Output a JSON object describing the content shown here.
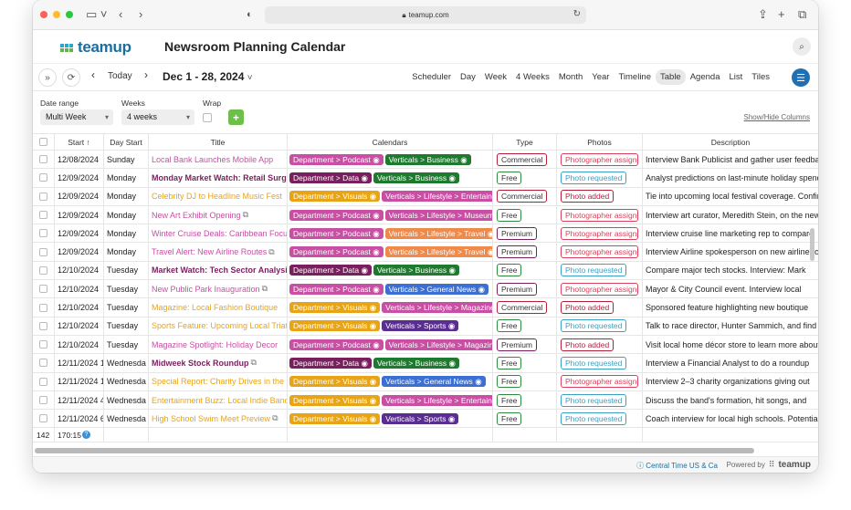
{
  "browser": {
    "url": "teamup.com"
  },
  "app": {
    "logo_text": "teamup",
    "calendar_title": "Newsroom Planning Calendar"
  },
  "nav": {
    "today_label": "Today",
    "date_range": "Dec 1 - 28, 2024",
    "views": [
      "Scheduler",
      "Day",
      "Week",
      "4 Weeks",
      "Month",
      "Year",
      "Timeline",
      "Table",
      "Agenda",
      "List",
      "Tiles"
    ],
    "active_view": "Table"
  },
  "filters": {
    "date_range_label": "Date range",
    "date_range_value": "Multi Week",
    "weeks_label": "Weeks",
    "weeks_value": "4 weeks",
    "wrap_label": "Wrap",
    "show_hide_label": "Show/Hide Columns"
  },
  "table": {
    "headers": {
      "start": "Start ↑",
      "day_start": "Day Start",
      "title": "Title",
      "calendars": "Calendars",
      "type": "Type",
      "photos": "Photos",
      "description": "Description"
    },
    "rows": [
      {
        "start": "12/08/2024",
        "day": "Sunday",
        "title": "Local Bank Launches Mobile App",
        "title_color": "#c84fa3",
        "bold": false,
        "cals": [
          {
            "label": "Department > Podcast",
            "color": "#c84fa3"
          },
          {
            "label": "Verticals > Business",
            "color": "#1e7a2e"
          }
        ],
        "type": "Commercial",
        "type_color": "#b51f3a",
        "photo": "Photographer assigned",
        "photo_color": "#d9415a",
        "desc": "Interview Bank Publicist and gather user feedback"
      },
      {
        "start": "12/09/2024",
        "day": "Monday",
        "title": "Monday Market Watch: Retail Surge",
        "title_color": "#7a1f5e",
        "bold": true,
        "cals": [
          {
            "label": "Department > Data",
            "color": "#7a1f5e"
          },
          {
            "label": "Verticals > Business",
            "color": "#1e7a2e"
          }
        ],
        "type": "Free",
        "type_color": "#2e8b3e",
        "photo": "Photo requested",
        "photo_color": "#3ba0c4",
        "desc": "Analyst predictions on last-minute holiday spending"
      },
      {
        "start": "12/09/2024",
        "day": "Monday",
        "title": "Celebrity DJ to Headline Music Fest",
        "title_color": "#e8a417",
        "bold": false,
        "cals": [
          {
            "label": "Department > Visuals",
            "color": "#e8a417"
          },
          {
            "label": "Verticals > Lifestyle > Entertainment",
            "color": "#c84fa3"
          }
        ],
        "type": "Commercial",
        "type_color": "#b51f3a",
        "photo": "Photo added",
        "photo_color": "#b51f3a",
        "desc": "Tie into upcoming local festival coverage. Confirm"
      },
      {
        "start": "12/09/2024",
        "day": "Monday",
        "title": "New Art Exhibit Opening",
        "title_color": "#c84fa3",
        "bold": false,
        "repeat": true,
        "cals": [
          {
            "label": "Department > Podcast",
            "color": "#c84fa3"
          },
          {
            "label": "Verticals > Lifestyle > Museums",
            "color": "#c84fa3"
          }
        ],
        "type": "Free",
        "type_color": "#2e8b3e",
        "photo": "Photographer assigned",
        "photo_color": "#d9415a",
        "desc": "Interview art curator, Meredith Stein, on the new"
      },
      {
        "start": "12/09/2024",
        "day": "Monday",
        "title": "Winter Cruise Deals: Caribbean Focus",
        "title_color": "#c84fa3",
        "bold": false,
        "cals": [
          {
            "label": "Department > Podcast",
            "color": "#c84fa3"
          },
          {
            "label": "Verticals > Lifestyle > Travel",
            "color": "#f08a4b"
          }
        ],
        "type": "Premium",
        "type_color": "#7a1f5e",
        "photo": "Photographer assigned",
        "photo_color": "#d9415a",
        "desc": "Interview cruise line marketing rep to compare"
      },
      {
        "start": "12/09/2024",
        "day": "Monday",
        "title": "Travel Alert: New Airline Routes",
        "title_color": "#c84fa3",
        "bold": false,
        "repeat": true,
        "cals": [
          {
            "label": "Department > Podcast",
            "color": "#c84fa3"
          },
          {
            "label": "Verticals > Lifestyle > Travel",
            "color": "#f08a4b"
          }
        ],
        "type": "Premium",
        "type_color": "#7a1f5e",
        "photo": "Photographer assigned",
        "photo_color": "#d9415a",
        "desc": "Interview Airline spokesperson on new airline routes"
      },
      {
        "start": "12/10/2024",
        "day": "Tuesday",
        "title": "Market Watch: Tech Sector Analysis",
        "title_color": "#7a1f5e",
        "bold": true,
        "cals": [
          {
            "label": "Department > Data",
            "color": "#7a1f5e"
          },
          {
            "label": "Verticals > Business",
            "color": "#1e7a2e"
          }
        ],
        "type": "Free",
        "type_color": "#2e8b3e",
        "photo": "Photo requested",
        "photo_color": "#3ba0c4",
        "desc": "Compare major tech stocks. Interview: Mark"
      },
      {
        "start": "12/10/2024",
        "day": "Tuesday",
        "title": "New Public Park Inauguration",
        "title_color": "#c84fa3",
        "bold": false,
        "repeat": true,
        "cals": [
          {
            "label": "Department > Podcast",
            "color": "#c84fa3"
          },
          {
            "label": "Verticals > General News",
            "color": "#3b6fd4"
          }
        ],
        "type": "Premium",
        "type_color": "#7a1f5e",
        "photo": "Photographer assigned",
        "photo_color": "#d9415a",
        "desc": "Mayor & City Council event. Interview local"
      },
      {
        "start": "12/10/2024",
        "day": "Tuesday",
        "title": "Magazine: Local Fashion Boutique",
        "title_color": "#e8a417",
        "bold": false,
        "cals": [
          {
            "label": "Department > Visuals",
            "color": "#e8a417"
          },
          {
            "label": "Verticals > Lifestyle > Magazine",
            "color": "#c84fa3"
          }
        ],
        "type": "Commercial",
        "type_color": "#b51f3a",
        "photo": "Photo added",
        "photo_color": "#b51f3a",
        "desc": "Sponsored feature highlighting new boutique"
      },
      {
        "start": "12/10/2024",
        "day": "Tuesday",
        "title": "Sports Feature: Upcoming Local Triathlon",
        "title_color": "#e8a417",
        "bold": false,
        "cals": [
          {
            "label": "Department > Visuals",
            "color": "#e8a417"
          },
          {
            "label": "Verticals > Sports",
            "color": "#5a2d91"
          }
        ],
        "type": "Free",
        "type_color": "#2e8b3e",
        "photo": "Photo requested",
        "photo_color": "#3ba0c4",
        "desc": "Talk to race director, Hunter Sammich, and find"
      },
      {
        "start": "12/10/2024",
        "day": "Tuesday",
        "title": "Magazine Spotlight: Holiday Decor",
        "title_color": "#c84fa3",
        "bold": false,
        "cals": [
          {
            "label": "Department > Podcast",
            "color": "#c84fa3"
          },
          {
            "label": "Verticals > Lifestyle > Magazine",
            "color": "#c84fa3"
          }
        ],
        "type": "Premium",
        "type_color": "#7a1f5e",
        "photo": "Photo added",
        "photo_color": "#b51f3a",
        "desc": "Visit local home décor store to learn more about"
      },
      {
        "start": "12/11/2024 1",
        "day": "Wednesda",
        "title": "Midweek Stock Roundup",
        "title_color": "#7a1f5e",
        "bold": true,
        "repeat": true,
        "cals": [
          {
            "label": "Department > Data",
            "color": "#7a1f5e"
          },
          {
            "label": "Verticals > Business",
            "color": "#1e7a2e"
          }
        ],
        "type": "Free",
        "type_color": "#2e8b3e",
        "photo": "Photo requested",
        "photo_color": "#3ba0c4",
        "desc": "Interview a Financial Analyst to do a roundup"
      },
      {
        "start": "12/11/2024 1",
        "day": "Wednesda",
        "title": "Special Report: Charity Drives in the City",
        "title_color": "#e8a417",
        "bold": false,
        "cals": [
          {
            "label": "Department > Visuals",
            "color": "#e8a417"
          },
          {
            "label": "Verticals > General News",
            "color": "#3b6fd4"
          }
        ],
        "type": "Free",
        "type_color": "#2e8b3e",
        "photo": "Photographer assigned",
        "photo_color": "#d9415a",
        "desc": "Interview 2–3 charity organizations giving out"
      },
      {
        "start": "12/11/2024 4",
        "day": "Wednesda",
        "title": "Entertainment Buzz: Local Indie Band",
        "title_color": "#e8a417",
        "bold": false,
        "cals": [
          {
            "label": "Department > Visuals",
            "color": "#e8a417"
          },
          {
            "label": "Verticals > Lifestyle > Entertainment",
            "color": "#c84fa3"
          }
        ],
        "type": "Free",
        "type_color": "#2e8b3e",
        "photo": "Photo requested",
        "photo_color": "#3ba0c4",
        "desc": "Discuss the band's formation, hit songs, and"
      },
      {
        "start": "12/11/2024 6",
        "day": "Wednesda",
        "title": "High School Swim Meet Preview",
        "title_color": "#e8a417",
        "bold": false,
        "repeat": true,
        "cals": [
          {
            "label": "Department > Visuals",
            "color": "#e8a417"
          },
          {
            "label": "Verticals > Sports",
            "color": "#5a2d91"
          }
        ],
        "type": "Free",
        "type_color": "#2e8b3e",
        "photo": "Photo requested",
        "photo_color": "#3ba0c4",
        "desc": "Coach interview for local high schools. Potential"
      }
    ],
    "footer_count": "142",
    "footer_total": "170:15"
  },
  "status": {
    "timezone": "Central Time US & Ca",
    "powered_by": "Powered by",
    "powered_brand": "teamup"
  }
}
